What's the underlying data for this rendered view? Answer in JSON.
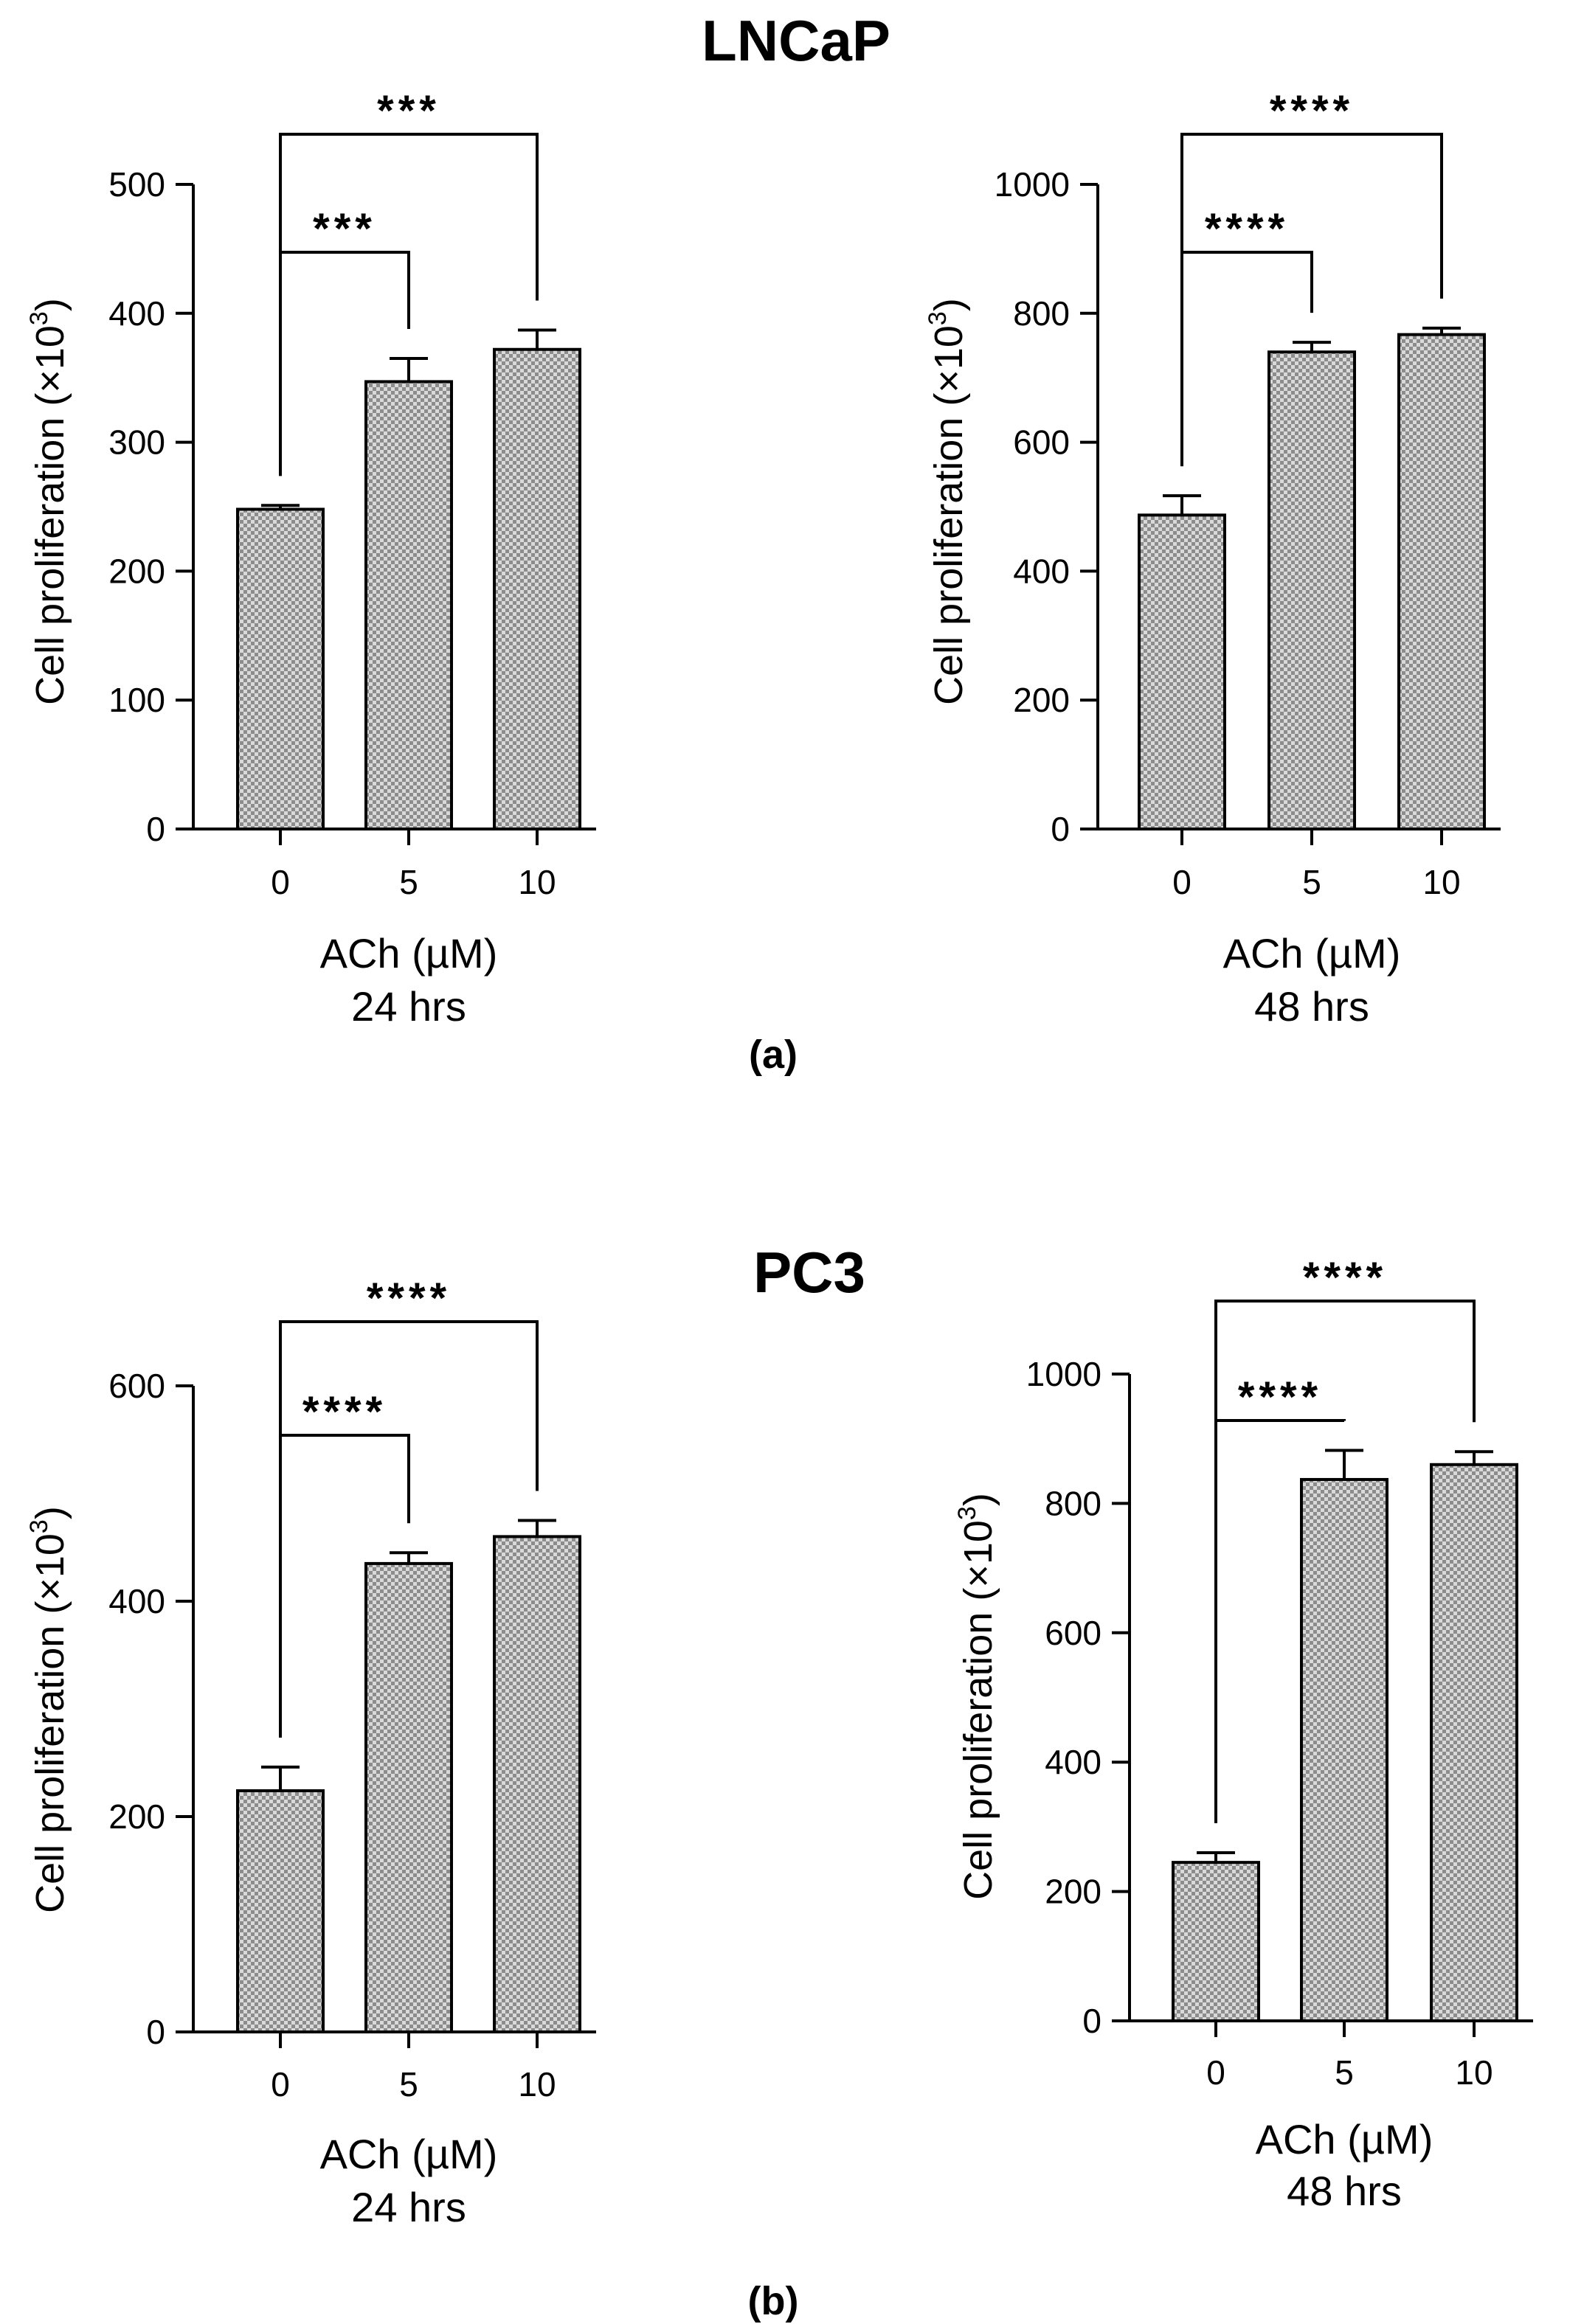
{
  "figure": {
    "title_top": "LNCaP",
    "title_bottom": "PC3",
    "label_a": "(a)",
    "label_b": "(b)"
  },
  "colors": {
    "bar_fill_light": "#d9d9d9",
    "bar_fill_dark": "#8c8c8c",
    "ink": "#000000"
  },
  "chart_data": [
    {
      "panel": "LNCaP 24 hrs",
      "type": "bar",
      "categories": [
        "0",
        "5",
        "10"
      ],
      "values": [
        248,
        347,
        372
      ],
      "errors": [
        3,
        18,
        15
      ],
      "ylim": [
        0,
        500
      ],
      "yticks": [
        0,
        100,
        200,
        300,
        400,
        500
      ],
      "ylabel": "Cell proliferation (×10",
      "ylabel_sup": "3",
      "ylabel_end": ")",
      "xlabel": "ACh (µM)",
      "xlabel2": "24 hrs",
      "brackets": [
        {
          "from": 0,
          "to": 1,
          "label": "***",
          "level": 1
        },
        {
          "from": 0,
          "to": 2,
          "label": "***",
          "level": 2
        }
      ]
    },
    {
      "panel": "LNCaP 48 hrs",
      "type": "bar",
      "categories": [
        "0",
        "5",
        "10"
      ],
      "values": [
        487,
        740,
        767
      ],
      "errors": [
        30,
        15,
        10
      ],
      "ylim": [
        0,
        1000
      ],
      "yticks": [
        0,
        200,
        400,
        600,
        800,
        1000
      ],
      "ylabel": "Cell proliferation (×10",
      "ylabel_sup": "3",
      "ylabel_end": ")",
      "xlabel": "ACh (µM)",
      "xlabel2": "48 hrs",
      "brackets": [
        {
          "from": 0,
          "to": 1,
          "label": "****",
          "level": 1
        },
        {
          "from": 0,
          "to": 2,
          "label": "****",
          "level": 2
        }
      ]
    },
    {
      "panel": "PC3 24 hrs",
      "type": "bar",
      "categories": [
        "0",
        "5",
        "10"
      ],
      "values": [
        224,
        435,
        460
      ],
      "errors": [
        22,
        10,
        15
      ],
      "ylim": [
        0,
        600
      ],
      "yticks": [
        0,
        200,
        400,
        600
      ],
      "ylabel": "Cell proliferation (×10",
      "ylabel_sup": "3",
      "ylabel_end": ")",
      "xlabel": "ACh (µM)",
      "xlabel2": "24 hrs",
      "brackets": [
        {
          "from": 0,
          "to": 1,
          "label": "****",
          "level": 1
        },
        {
          "from": 0,
          "to": 2,
          "label": "****",
          "level": 2
        }
      ]
    },
    {
      "panel": "PC3 48 hrs",
      "type": "bar",
      "categories": [
        "0",
        "5",
        "10"
      ],
      "values": [
        245,
        837,
        860
      ],
      "errors": [
        15,
        45,
        20
      ],
      "ylim": [
        0,
        1000
      ],
      "yticks": [
        0,
        200,
        400,
        600,
        800,
        1000
      ],
      "ylabel": "Cell proliferation (×10",
      "ylabel_sup": "3",
      "ylabel_end": ")",
      "xlabel": "ACh (µM)",
      "xlabel2": "48 hrs",
      "brackets": [
        {
          "from": 0,
          "to": 1,
          "label": "****",
          "level": 1
        },
        {
          "from": 0,
          "to": 2,
          "label": "****",
          "level": 2
        }
      ]
    }
  ]
}
